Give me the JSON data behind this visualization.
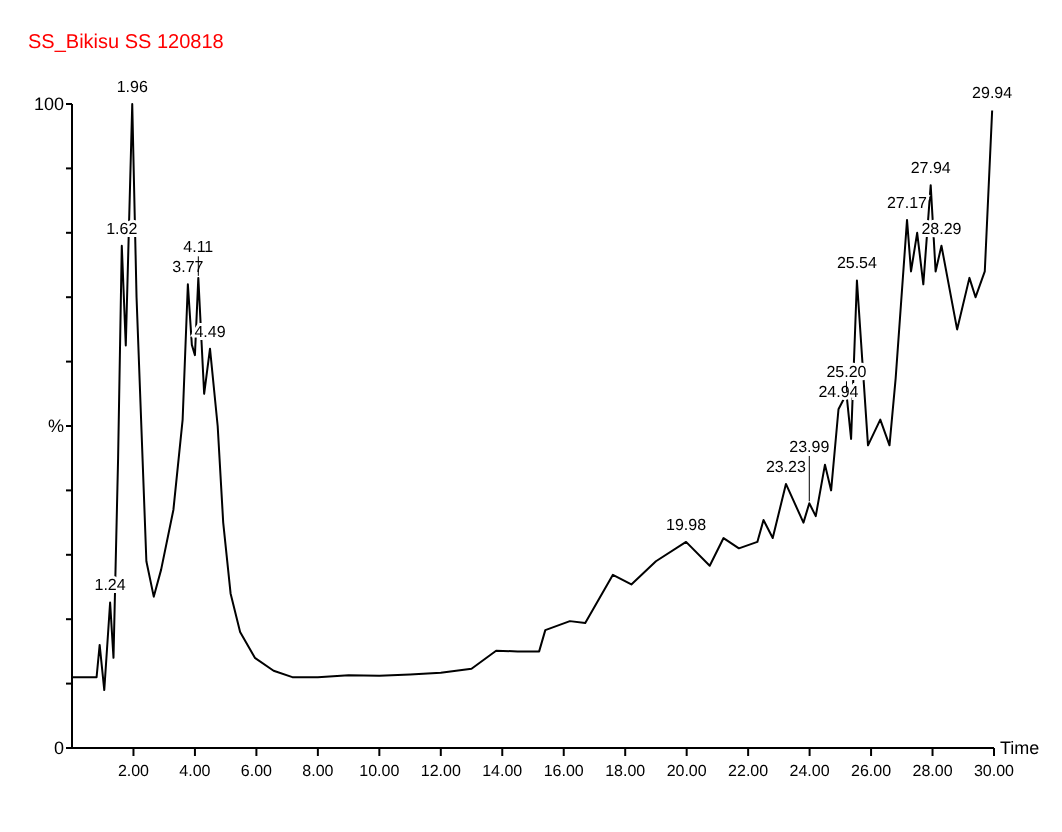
{
  "chart_data": {
    "type": "line",
    "title": "SS_Bikisu SS 120818",
    "xlabel": "Time",
    "x": [
      0,
      0.8,
      0.9,
      1.05,
      1.24,
      1.35,
      1.5,
      1.62,
      1.75,
      1.96,
      2.1,
      2.42,
      2.66,
      2.9,
      3.3,
      3.6,
      3.77,
      3.9,
      4.0,
      4.11,
      4.3,
      4.49,
      4.74,
      4.92,
      5.16,
      5.47,
      5.95,
      6.56,
      7.17,
      8,
      9,
      10,
      11,
      12,
      13,
      13.8,
      14.5,
      15.2,
      15.4,
      16.2,
      16.7,
      17.6,
      18.2,
      19.0,
      19.98,
      20.75,
      21.2,
      21.7,
      22.3,
      22.5,
      22.8,
      23.23,
      23.8,
      23.99,
      24.2,
      24.5,
      24.7,
      24.94,
      25.2,
      25.35,
      25.54,
      25.9,
      26.3,
      26.6,
      26.8,
      27.17,
      27.3,
      27.5,
      27.7,
      27.94,
      28.1,
      28.29,
      28.8,
      29.2,
      29.4,
      29.7,
      29.94
    ],
    "values": [
      11,
      11,
      16,
      9,
      22.6,
      14,
      45,
      78,
      62.5,
      100,
      70,
      29,
      23.5,
      27.7,
      37,
      51,
      72,
      62.6,
      61,
      73,
      55,
      62,
      50,
      35,
      24,
      18,
      14,
      12,
      11,
      11,
      11.3,
      11.2,
      11.4,
      11.7,
      12.3,
      15.1,
      15,
      15,
      18.3,
      19.7,
      19.4,
      26.9,
      25.4,
      29,
      32,
      28.3,
      32.6,
      31,
      32,
      35.4,
      32.6,
      41,
      35,
      38,
      36,
      44,
      40,
      52.6,
      55,
      48,
      72.6,
      47,
      51,
      47,
      57.4,
      82,
      74,
      80,
      72,
      87.4,
      74,
      78,
      65,
      73,
      70,
      74,
      99
    ],
    "color": "#000000",
    "marker": "none",
    "line_style": "solid",
    "xlim": [
      0,
      30
    ],
    "xticks": [
      {
        "value": 2,
        "label": "2.00"
      },
      {
        "value": 4,
        "label": "4.00"
      },
      {
        "value": 6,
        "label": "6.00"
      },
      {
        "value": 8,
        "label": "8.00"
      },
      {
        "value": 10,
        "label": "10.00"
      },
      {
        "value": 12,
        "label": "12.00"
      },
      {
        "value": 14,
        "label": "14.00"
      },
      {
        "value": 16,
        "label": "16.00"
      },
      {
        "value": 18,
        "label": "18.00"
      },
      {
        "value": 20,
        "label": "20.00"
      },
      {
        "value": 22,
        "label": "22.00"
      },
      {
        "value": 24,
        "label": "24.00"
      },
      {
        "value": 26,
        "label": "26.00"
      },
      {
        "value": 28,
        "label": "28.00"
      },
      {
        "value": 30,
        "label": "30.00"
      }
    ],
    "ylim": [
      0,
      100
    ],
    "yticks": [
      0,
      {
        "value": 10,
        "label": null
      },
      {
        "value": 20,
        "label": null
      },
      {
        "value": 30,
        "label": null
      },
      {
        "value": 40,
        "label": null
      },
      {
        "value": 50,
        "label": "%"
      },
      {
        "value": 60,
        "label": null
      },
      {
        "value": 70,
        "label": null
      },
      {
        "value": 80,
        "label": null
      },
      {
        "value": 90,
        "label": null
      },
      100
    ],
    "grid": false,
    "annotations": [
      {
        "text": "1.24",
        "x": 1.24,
        "y": 22.6
      },
      {
        "text": "1.62",
        "x": 1.62,
        "y": 78
      },
      {
        "text": "1.96",
        "x": 1.96,
        "y": 100
      },
      {
        "text": "3.77",
        "x": 3.77,
        "y": 72
      },
      {
        "text": "4.11",
        "x": 4.11,
        "y": 73
      },
      {
        "text": "4.49",
        "x": 4.49,
        "y": 62
      },
      {
        "text": "19.98",
        "x": 19.98,
        "y": 32
      },
      {
        "text": "23.23",
        "x": 23.23,
        "y": 41
      },
      {
        "text": "23.99",
        "x": 23.99,
        "y": 38
      },
      {
        "text": "24.94",
        "x": 24.94,
        "y": 52.6
      },
      {
        "text": "25.20",
        "x": 25.2,
        "y": 55
      },
      {
        "text": "25.54",
        "x": 25.54,
        "y": 72.6
      },
      {
        "text": "27.17",
        "x": 27.17,
        "y": 82
      },
      {
        "text": "27.94",
        "x": 27.94,
        "y": 87.4
      },
      {
        "text": "28.29",
        "x": 28.29,
        "y": 78
      },
      {
        "text": "29.94",
        "x": 29.94,
        "y": 99
      }
    ]
  }
}
